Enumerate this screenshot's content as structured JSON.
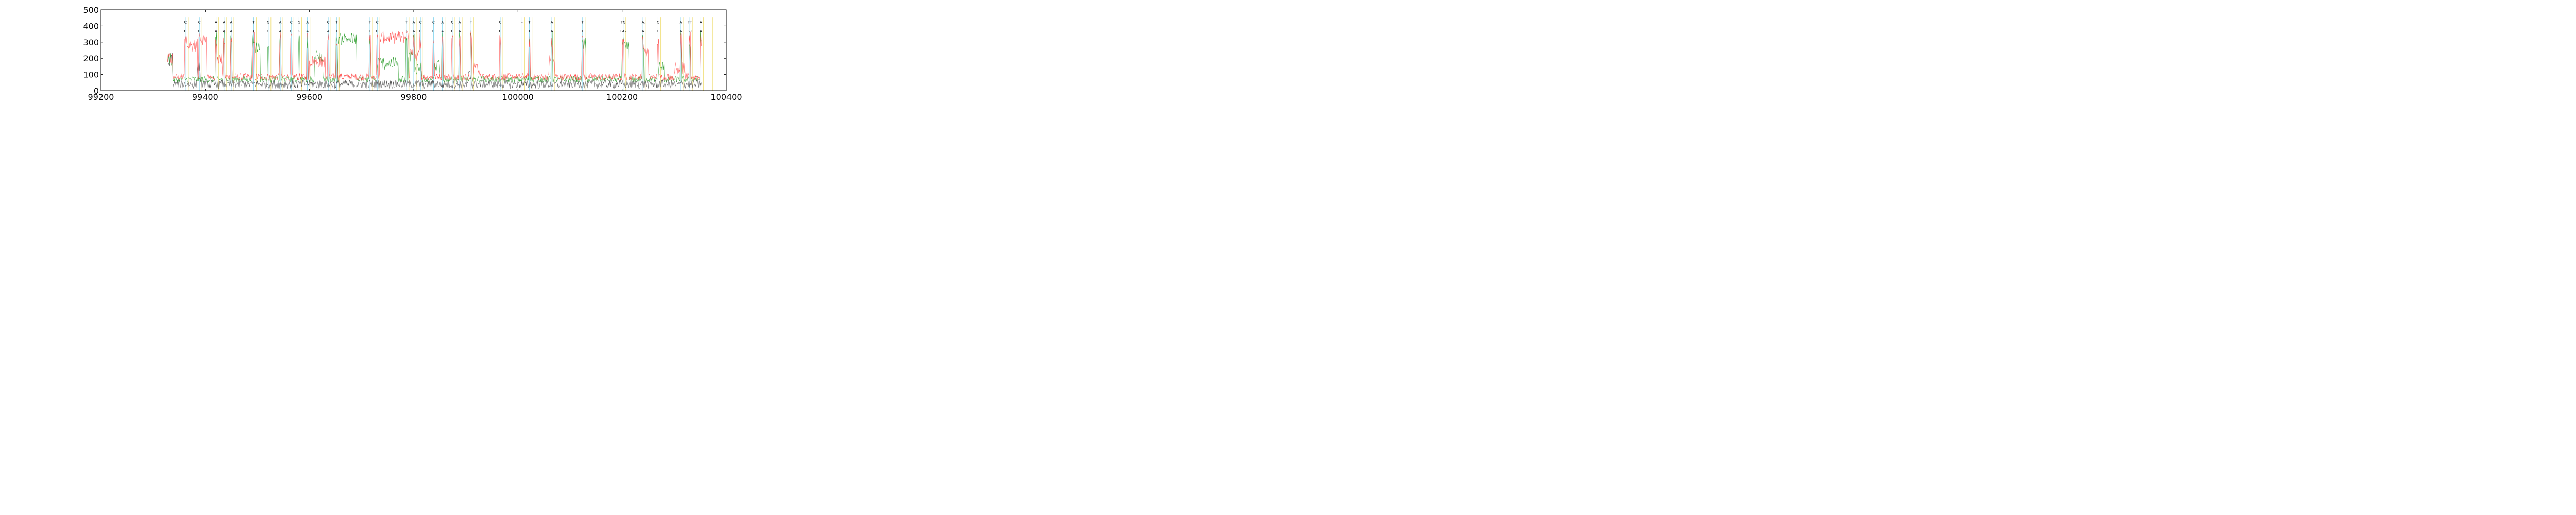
{
  "chart_data": {
    "type": "line",
    "title": "",
    "xlabel": "",
    "ylabel": "",
    "xlim": [
      99200,
      100400
    ],
    "ylim": [
      0,
      500
    ],
    "grid": false,
    "x_ticks": [
      99200,
      99400,
      99600,
      99800,
      100000,
      100200,
      100400
    ],
    "y_ticks": [
      0,
      100,
      200,
      300,
      400,
      500
    ],
    "colors": {
      "red_trace": "#ff4f4f",
      "green_trace": "#3aa33a",
      "black_trace": "#555555",
      "cyan_line": "#8fd8ef",
      "yellow_line": "#f2e38a"
    },
    "read_range": [
      99328,
      99352
    ],
    "trace_end": 100352,
    "base_calls": [
      {
        "x": 99362,
        "top": "C",
        "bottom": "C"
      },
      {
        "x": 99389,
        "top": "C",
        "bottom": "C"
      },
      {
        "x": 99421,
        "top": "A",
        "bottom": "A"
      },
      {
        "x": 99436,
        "top": "A",
        "bottom": "A"
      },
      {
        "x": 99450,
        "top": "A",
        "bottom": "A"
      },
      {
        "x": 99493,
        "top": "T",
        "bottom": "T"
      },
      {
        "x": 99521,
        "top": "G",
        "bottom": "G"
      },
      {
        "x": 99544,
        "top": "A",
        "bottom": "A"
      },
      {
        "x": 99565,
        "top": "C",
        "bottom": "C"
      },
      {
        "x": 99580,
        "top": "G",
        "bottom": "G"
      },
      {
        "x": 99596,
        "top": "A",
        "bottom": "A"
      },
      {
        "x": 99636,
        "top": "C",
        "bottom": "A"
      },
      {
        "x": 99652,
        "top": "T",
        "bottom": "T"
      },
      {
        "x": 99716,
        "top": "T",
        "bottom": "T"
      },
      {
        "x": 99730,
        "top": "C",
        "bottom": "C"
      },
      {
        "x": 99786,
        "top": "T",
        "bottom": "T"
      },
      {
        "x": 99800,
        "top": "A",
        "bottom": "A"
      },
      {
        "x": 99813,
        "top": "C",
        "bottom": "C"
      },
      {
        "x": 99838,
        "top": "C",
        "bottom": "C"
      },
      {
        "x": 99855,
        "top": "A",
        "bottom": "A"
      },
      {
        "x": 99874,
        "top": "C",
        "bottom": "C"
      },
      {
        "x": 99888,
        "top": "A",
        "bottom": "A"
      },
      {
        "x": 99910,
        "top": "T",
        "bottom": "T"
      },
      {
        "x": 99966,
        "top": "C",
        "bottom": "C"
      },
      {
        "x": 100008,
        "top": "-",
        "bottom": "T"
      },
      {
        "x": 100022,
        "top": "T",
        "bottom": "T"
      },
      {
        "x": 100065,
        "top": "A",
        "bottom": "A"
      },
      {
        "x": 100124,
        "top": "T",
        "bottom": "T"
      },
      {
        "x": 100202,
        "top": "TG",
        "bottom": "GG"
      },
      {
        "x": 100240,
        "top": "A",
        "bottom": "A"
      },
      {
        "x": 100269,
        "top": "C",
        "bottom": "C"
      },
      {
        "x": 100312,
        "top": "A",
        "bottom": "A"
      },
      {
        "x": 100330,
        "top": "TT",
        "bottom": "GT"
      },
      {
        "x": 100351,
        "top": "A",
        "bottom": "A"
      }
    ]
  }
}
